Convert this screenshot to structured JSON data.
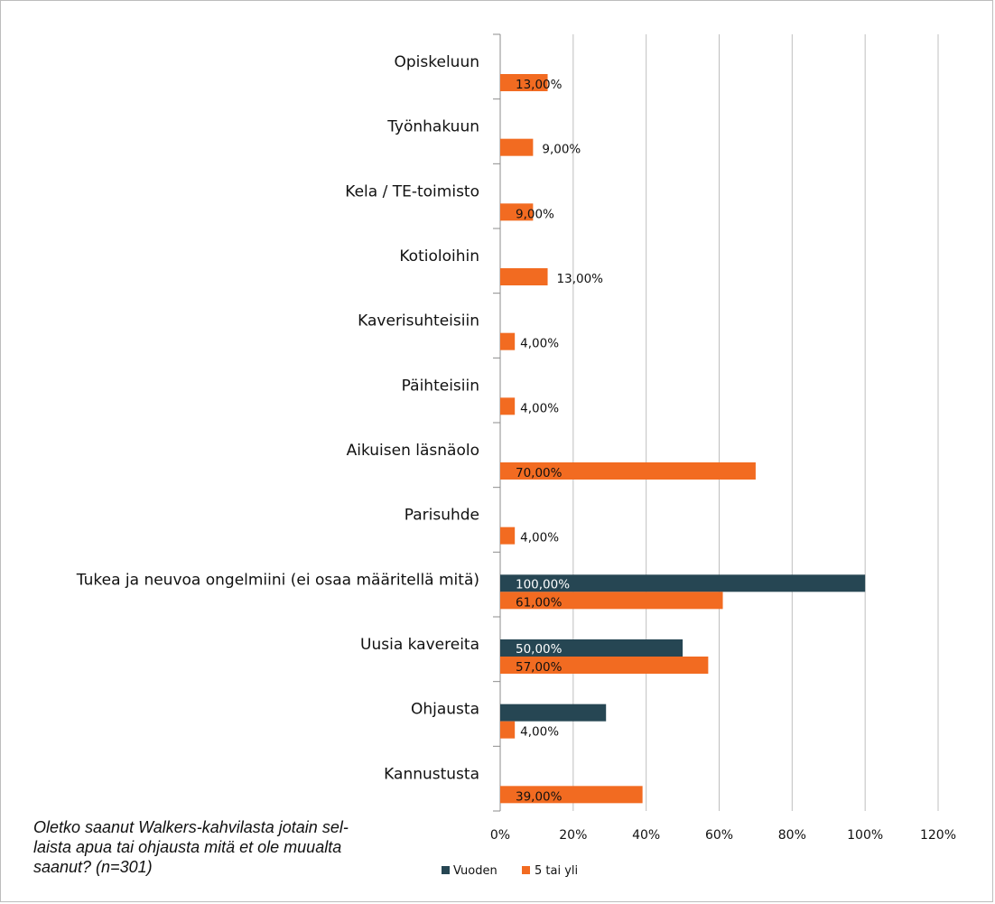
{
  "caption": "Oletko saanut Walkers-kahvilasta jotain sel-laista apua tai ohjausta mitä et ole muualta saanut? (n=301)",
  "caption_lines": [
    "Oletko saanut Walkers-kahvilasta jotain sel-",
    "laista apua tai ohjausta mitä et ole muualta",
    "saanut? (n=301)"
  ],
  "chart_data": {
    "type": "bar",
    "orientation": "horizontal",
    "categories": [
      "Opiskeluun",
      "Työnhakuun",
      "Kela / TE-toimisto",
      "Kotioloihin",
      "Kaverisuhteisiin",
      "Päihteisiin",
      "Aikuisen läsnäolo",
      "Parisuhde",
      "Tukea ja neuvoa ongelmiini (ei osaa määritellä mitä)",
      "Uusia kavereita",
      "Ohjausta",
      "Kannustusta"
    ],
    "series": [
      {
        "name": "Vuoden",
        "color": "#264653",
        "values": [
          null,
          null,
          null,
          null,
          null,
          null,
          null,
          null,
          100,
          50,
          29,
          null
        ],
        "labels": [
          "",
          "",
          "",
          "",
          "",
          "",
          "",
          "",
          "100,00%",
          "50,00%",
          "",
          ""
        ]
      },
      {
        "name": "5 tai yli",
        "color": "#f26b21",
        "values": [
          13,
          9,
          9,
          13,
          4,
          4,
          70,
          4,
          61,
          57,
          4,
          39
        ],
        "labels": [
          "13,00%",
          "9,00%",
          "9,00%",
          "13,00%",
          "4,00%",
          "4,00%",
          "70,00%",
          "4,00%",
          "61,00%",
          "57,00%",
          "4,00%",
          "39,00%"
        ]
      }
    ],
    "xlim": [
      0,
      120
    ],
    "xticks": [
      "0%",
      "20%",
      "40%",
      "60%",
      "80%",
      "100%",
      "120%"
    ],
    "xtick_values": [
      0,
      20,
      40,
      60,
      80,
      100,
      120
    ],
    "grid": true,
    "legend": "bottom"
  }
}
